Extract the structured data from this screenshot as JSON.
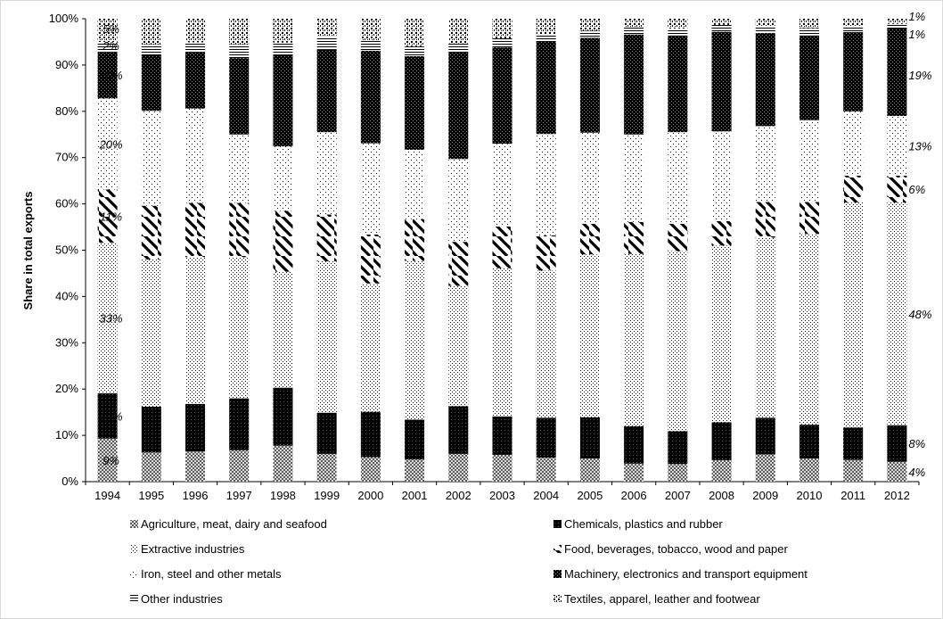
{
  "chart_data": {
    "type": "bar",
    "stacked": true,
    "percent": true,
    "ylabel": "Share in total exports",
    "xlabel": "",
    "ylim": [
      0,
      100
    ],
    "yticks": [
      "0%",
      "10%",
      "20%",
      "30%",
      "40%",
      "50%",
      "60%",
      "70%",
      "80%",
      "90%",
      "100%"
    ],
    "legend_position": "bottom",
    "grid": false,
    "categories": [
      "1994",
      "1995",
      "1996",
      "1997",
      "1998",
      "1999",
      "2000",
      "2001",
      "2002",
      "2003",
      "2004",
      "2005",
      "2006",
      "2007",
      "2008",
      "2009",
      "2010",
      "2011",
      "2012"
    ],
    "series": [
      {
        "name": "Agriculture, meat, dairy and seafood",
        "pattern": "cross",
        "values": [
          9.3,
          6.3,
          6.5,
          6.8,
          7.7,
          6.0,
          5.3,
          4.8,
          6.0,
          5.8,
          5.2,
          5.0,
          3.9,
          3.8,
          4.6,
          5.9,
          5.0,
          4.7,
          4.3
        ]
      },
      {
        "name": "Chemicals, plastics and rubber",
        "pattern": "solid",
        "values": [
          9.8,
          9.9,
          10.3,
          11.2,
          12.4,
          8.9,
          9.8,
          8.6,
          10.3,
          8.3,
          8.6,
          8.9,
          8.1,
          7.1,
          8.1,
          7.9,
          7.3,
          7.0,
          7.9
        ]
      },
      {
        "name": "Extractive industries",
        "pattern": "fine-dots",
        "values": [
          32.5,
          31.8,
          31.7,
          30.5,
          24.8,
          32.7,
          27.7,
          34.3,
          26.0,
          32.0,
          31.8,
          35.2,
          37.2,
          38.9,
          37.8,
          38.9,
          41.2,
          48.6,
          48.1
        ]
      },
      {
        "name": "Food, beverages, tobacco, wood and paper",
        "pattern": "diagonal",
        "values": [
          11.5,
          11.6,
          11.7,
          11.7,
          13.0,
          10.1,
          10.6,
          9.0,
          9.5,
          9.0,
          7.6,
          6.6,
          6.9,
          5.9,
          5.2,
          7.7,
          6.9,
          5.8,
          5.8
        ]
      },
      {
        "name": "Iron, steel and other metals",
        "pattern": "sparse-dots",
        "values": [
          19.7,
          20.5,
          20.4,
          14.8,
          13.8,
          17.8,
          19.7,
          15.0,
          17.9,
          17.9,
          21.9,
          19.7,
          18.9,
          19.8,
          19.2,
          16.4,
          17.7,
          13.9,
          12.9
        ]
      },
      {
        "name": "Machinery, electronics and transport equipment",
        "pattern": "dark-check",
        "values": [
          10.0,
          12.0,
          12.1,
          16.5,
          19.5,
          17.8,
          20.0,
          20.2,
          23.2,
          20.8,
          19.9,
          20.5,
          21.6,
          20.9,
          21.3,
          20.1,
          18.3,
          17.1,
          18.9
        ]
      },
      {
        "name": "Other industries",
        "pattern": "hlines",
        "values": [
          2.2,
          2.4,
          2.2,
          3.0,
          2.7,
          2.9,
          2.2,
          2.1,
          1.8,
          2.0,
          1.7,
          1.5,
          1.5,
          1.5,
          1.5,
          1.6,
          1.6,
          1.4,
          1.0
        ]
      },
      {
        "name": "Textiles, apparel, leather and footwear",
        "pattern": "coarse-dots",
        "values": [
          5.0,
          5.5,
          5.1,
          5.5,
          5.1,
          3.8,
          4.7,
          6.0,
          5.3,
          4.2,
          3.3,
          2.6,
          1.9,
          2.1,
          1.3,
          1.5,
          2.0,
          1.5,
          1.1
        ]
      }
    ],
    "annotations": [
      {
        "category": "1994",
        "series": 0,
        "text": "9%"
      },
      {
        "category": "1994",
        "series": 1,
        "text": "10%"
      },
      {
        "category": "1994",
        "series": 2,
        "text": "33%"
      },
      {
        "category": "1994",
        "series": 3,
        "text": "11%"
      },
      {
        "category": "1994",
        "series": 4,
        "text": "20%"
      },
      {
        "category": "1994",
        "series": 5,
        "text": "10%"
      },
      {
        "category": "1994",
        "series": 6,
        "text": "2%"
      },
      {
        "category": "1994",
        "series": 7,
        "text": "5%"
      },
      {
        "category": "2012",
        "series": 0,
        "text": "4%"
      },
      {
        "category": "2012",
        "series": 1,
        "text": "8%"
      },
      {
        "category": "2012",
        "series": 2,
        "text": "48%"
      },
      {
        "category": "2012",
        "series": 3,
        "text": "6%"
      },
      {
        "category": "2012",
        "series": 4,
        "text": "13%"
      },
      {
        "category": "2012",
        "series": 5,
        "text": "19%"
      },
      {
        "category": "2012",
        "series": 6,
        "text": "1%"
      },
      {
        "category": "2012",
        "series": 7,
        "text": "1%"
      }
    ]
  }
}
